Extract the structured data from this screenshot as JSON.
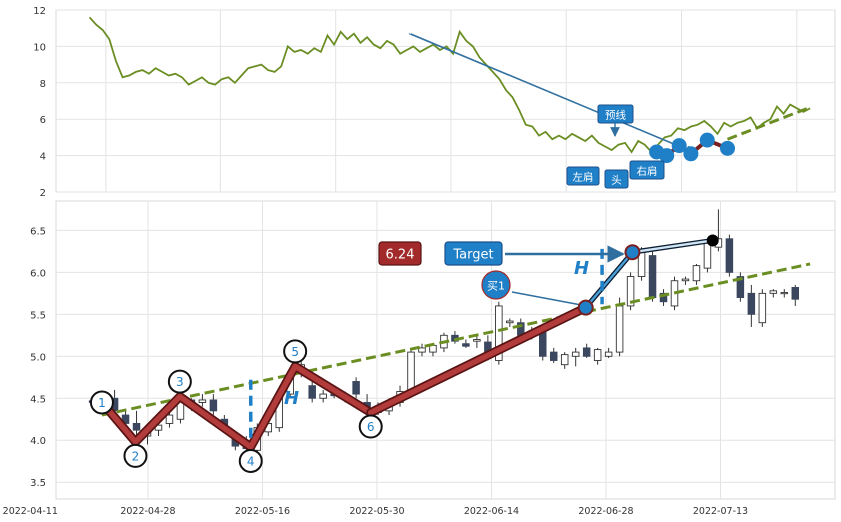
{
  "chart_data": [
    {
      "type": "line",
      "panel": "overview",
      "ylim": [
        2,
        12
      ],
      "yticks": [
        2,
        4,
        6,
        8,
        10,
        12
      ],
      "grid": true,
      "series": [
        {
          "color": "#6b8e23",
          "y": [
            11.6,
            11.2,
            10.9,
            10.4,
            9.2,
            8.3,
            8.4,
            8.6,
            8.7,
            8.5,
            8.8,
            8.6,
            8.4,
            8.5,
            8.3,
            7.9,
            8.1,
            8.3,
            8.0,
            7.9,
            8.2,
            8.3,
            8.0,
            8.4,
            8.8,
            8.9,
            9.0,
            8.7,
            8.6,
            8.9,
            10.0,
            9.7,
            9.8,
            9.6,
            9.9,
            9.7,
            10.6,
            10.1,
            10.8,
            10.4,
            10.7,
            10.2,
            10.5,
            10.1,
            9.9,
            10.3,
            10.1,
            9.6,
            9.8,
            10.0,
            9.7,
            9.9,
            10.1,
            9.8,
            10.0,
            9.6,
            10.8,
            10.3,
            10.0,
            9.4,
            9.0,
            8.6,
            8.2,
            7.6,
            7.2,
            6.5,
            5.7,
            5.6,
            5.1,
            5.3,
            4.9,
            5.1,
            4.9,
            5.2,
            5.0,
            4.8,
            5.1,
            4.7,
            4.5,
            4.3,
            4.6,
            4.7,
            4.2,
            4.8,
            4.6,
            4.2,
            4.6,
            5.0,
            5.1,
            5.5,
            5.4,
            5.6,
            5.7,
            5.9,
            5.6,
            5.2,
            5.8,
            5.6,
            5.8,
            5.9,
            6.1,
            5.5,
            5.8,
            6.0,
            6.7,
            6.3,
            6.8,
            6.6,
            6.4,
            6.6
          ]
        },
        {
          "style": "dashed",
          "color": "#6b8e23",
          "points": [
            [
              0.862,
              4.9
            ],
            [
              0.968,
              6.65
            ]
          ]
        }
      ],
      "pattern_points": [
        {
          "x": 0.771,
          "y": 4.2
        },
        {
          "x": 0.784,
          "y": 4.0
        },
        {
          "x": 0.8,
          "y": 4.55
        },
        {
          "x": 0.815,
          "y": 4.1
        },
        {
          "x": 0.836,
          "y": 4.85
        },
        {
          "x": 0.862,
          "y": 4.4
        }
      ],
      "labels": {
        "left_shoulder": "左肩",
        "head": "头",
        "right_shoulder": "右肩",
        "neckline": "预线"
      }
    },
    {
      "type": "candlestick",
      "panel": "detail",
      "ylim": [
        3.3,
        6.85
      ],
      "yticks": [
        3.5,
        4.0,
        4.5,
        5.0,
        5.5,
        6.0,
        6.5
      ],
      "xticks": [
        "2022-04-11",
        "2022-04-28",
        "2022-05-16",
        "2022-05-30",
        "2022-06-14",
        "2022-06-28",
        "2022-07-13"
      ],
      "grid": true,
      "candles": [
        [
          4.47,
          4.52,
          4.4,
          4.45
        ],
        [
          4.45,
          4.55,
          4.4,
          4.5
        ],
        [
          4.5,
          4.6,
          4.3,
          4.35
        ],
        [
          4.3,
          4.35,
          4.15,
          4.2
        ],
        [
          4.2,
          4.35,
          4.05,
          4.12
        ],
        [
          4.05,
          4.2,
          3.95,
          4.15
        ],
        [
          4.12,
          4.25,
          4.05,
          4.18
        ],
        [
          4.2,
          4.35,
          4.15,
          4.3
        ],
        [
          4.25,
          4.55,
          4.2,
          4.5
        ],
        [
          4.48,
          4.5,
          4.35,
          4.4
        ],
        [
          4.45,
          4.55,
          4.4,
          4.48
        ],
        [
          4.48,
          4.55,
          4.3,
          4.35
        ],
        [
          4.25,
          4.3,
          4.1,
          4.15
        ],
        [
          4.05,
          4.1,
          3.88,
          3.93
        ],
        [
          3.95,
          4.05,
          3.85,
          3.9
        ],
        [
          3.88,
          4.2,
          3.86,
          4.15
        ],
        [
          4.1,
          4.25,
          4.05,
          4.2
        ],
        [
          4.15,
          4.6,
          4.1,
          4.55
        ],
        [
          4.55,
          4.8,
          4.5,
          4.75
        ],
        [
          4.8,
          4.95,
          4.75,
          4.9
        ],
        [
          4.65,
          4.7,
          4.45,
          4.5
        ],
        [
          4.5,
          4.6,
          4.45,
          4.55
        ],
        [
          4.55,
          4.65,
          4.5,
          4.53
        ],
        [
          4.5,
          4.58,
          4.45,
          4.5
        ],
        [
          4.7,
          4.75,
          4.5,
          4.55
        ],
        [
          4.45,
          4.55,
          4.35,
          4.4
        ],
        [
          4.4,
          4.45,
          4.3,
          4.33
        ],
        [
          4.35,
          4.5,
          4.3,
          4.45
        ],
        [
          4.45,
          4.65,
          4.4,
          4.58
        ],
        [
          4.6,
          5.1,
          4.55,
          5.05
        ],
        [
          5.05,
          5.15,
          5.0,
          5.1
        ],
        [
          5.05,
          5.15,
          5.0,
          5.13
        ],
        [
          5.1,
          5.28,
          5.05,
          5.25
        ],
        [
          5.25,
          5.3,
          5.15,
          5.18
        ],
        [
          5.15,
          5.2,
          5.1,
          5.12
        ],
        [
          5.18,
          5.25,
          5.1,
          5.2
        ],
        [
          5.17,
          5.25,
          4.95,
          5.0
        ],
        [
          4.95,
          5.65,
          4.9,
          5.6
        ],
        [
          5.4,
          5.45,
          5.35,
          5.42
        ],
        [
          5.4,
          5.45,
          5.2,
          5.25
        ],
        [
          5.3,
          5.35,
          5.2,
          5.3
        ],
        [
          5.3,
          5.35,
          4.95,
          5.0
        ],
        [
          5.05,
          5.1,
          4.92,
          4.95
        ],
        [
          4.9,
          5.05,
          4.85,
          5.02
        ],
        [
          5.0,
          5.1,
          4.88,
          5.05
        ],
        [
          5.1,
          5.15,
          4.98,
          5.0
        ],
        [
          4.95,
          5.1,
          4.9,
          5.08
        ],
        [
          5.0,
          5.1,
          4.98,
          5.05
        ],
        [
          5.05,
          5.7,
          5.0,
          5.6
        ],
        [
          5.6,
          6.0,
          5.55,
          5.95
        ],
        [
          5.95,
          6.3,
          5.9,
          6.25
        ],
        [
          6.2,
          6.25,
          5.65,
          5.7
        ],
        [
          5.75,
          5.8,
          5.6,
          5.65
        ],
        [
          5.6,
          5.95,
          5.55,
          5.9
        ],
        [
          5.9,
          5.95,
          5.85,
          5.92
        ],
        [
          5.9,
          6.1,
          5.85,
          6.08
        ],
        [
          6.05,
          6.4,
          6.0,
          6.35
        ],
        [
          6.3,
          6.75,
          6.25,
          6.4
        ],
        [
          6.4,
          6.45,
          5.95,
          6.0
        ],
        [
          5.95,
          6.0,
          5.65,
          5.7
        ],
        [
          5.75,
          5.85,
          5.35,
          5.5
        ],
        [
          5.4,
          5.8,
          5.35,
          5.75
        ],
        [
          5.75,
          5.8,
          5.7,
          5.78
        ],
        [
          5.75,
          5.8,
          5.7,
          5.76
        ],
        [
          5.82,
          5.85,
          5.6,
          5.68
        ]
      ],
      "wave_points": [
        {
          "label": "1",
          "x": 0.059,
          "y": 4.45
        },
        {
          "label": "2",
          "x": 0.102,
          "y": 3.98
        },
        {
          "label": "3",
          "x": 0.159,
          "y": 4.52
        },
        {
          "label": "4",
          "x": 0.25,
          "y": 3.92
        },
        {
          "label": "5",
          "x": 0.307,
          "y": 4.88
        },
        {
          "label": "6",
          "x": 0.404,
          "y": 4.33
        }
      ],
      "breakout": {
        "label": "买1",
        "x": 0.68,
        "y": 5.58
      },
      "target_point": {
        "x": 0.74,
        "y": 6.24
      },
      "top_marker": {
        "x": 0.843,
        "y": 6.38
      },
      "trendline": [
        [
          0.059,
          4.3
        ],
        [
          0.968,
          6.1
        ]
      ],
      "target": {
        "label": "Target",
        "value": "6.24"
      },
      "height_label": "H"
    }
  ]
}
